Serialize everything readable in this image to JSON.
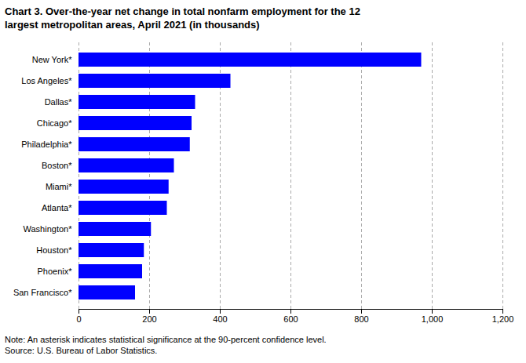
{
  "chart_data": {
    "type": "bar",
    "orientation": "horizontal",
    "title": "Chart 3. Over-the-year net change in total nonfarm employment for the 12\nlargest metropolitan areas, April 2021 (in thousands)",
    "annotations": [
      "Note: An asterisk indicates statistical significance at the 90-percent confidence level.",
      "Source: U.S. Bureau of Labor Statistics."
    ],
    "categories": [
      "New York*",
      "Los Angeles*",
      "Dallas*",
      "Chicago*",
      "Philadelphia*",
      "Boston*",
      "Miami*",
      "Atlanta*",
      "Washington*",
      "Houston*",
      "Phoenix*",
      "San Francisco*"
    ],
    "values": [
      970,
      430,
      330,
      320,
      315,
      270,
      255,
      250,
      205,
      185,
      180,
      160
    ],
    "color": "#0000FF",
    "xlim": [
      0,
      1200
    ],
    "xticks": [
      0,
      200,
      400,
      600,
      800,
      {
        "value": 1000,
        "label": "1,000"
      },
      {
        "value": 1200,
        "label": "1,200"
      }
    ],
    "grid": true
  }
}
